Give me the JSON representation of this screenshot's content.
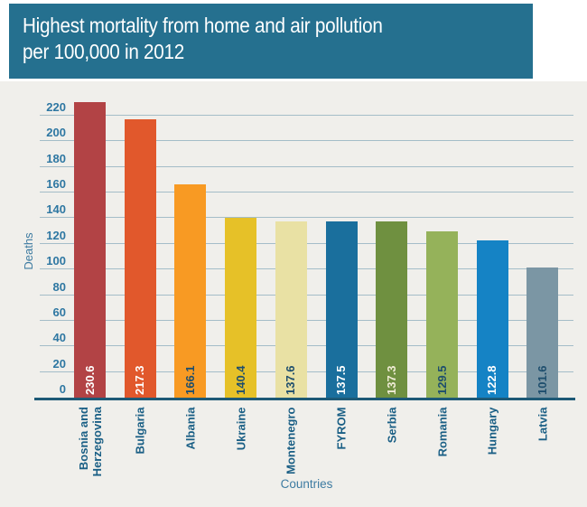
{
  "header": {
    "title_line1": "Highest mortality from home and air pollution",
    "title_line2": "per 100,000 in 2012"
  },
  "colors": {
    "header_bg": "#25708f",
    "panel_bg": "#f0efeb",
    "grid_line": "#a4bdc8",
    "axis_line": "#1d5976",
    "tick_label": "#2e77a2",
    "axis_title": "#3d7ba1",
    "category_label": "#1a5f85"
  },
  "chart_data": {
    "type": "bar",
    "title": "Highest mortality from home and air pollution per 100,000 in 2012",
    "xlabel": "Countries",
    "ylabel": "Deaths",
    "ylim": [
      0,
      220
    ],
    "ytick_step": 20,
    "grid": true,
    "legend": false,
    "categories": [
      "Bosnia and Herzegovina",
      "Bulgaria",
      "Albania",
      "Ukraine",
      "Montenegro",
      "FYROM",
      "Serbia",
      "Romania",
      "Hungary",
      "Latvia"
    ],
    "values": [
      230.6,
      217.3,
      166.1,
      140.4,
      137.6,
      137.5,
      137.3,
      129.5,
      122.8,
      101.6
    ],
    "bar_colors": [
      "#b24345",
      "#e1582c",
      "#f89a23",
      "#e6c128",
      "#e9e1a4",
      "#1a6f9d",
      "#6f9040",
      "#95b25a",
      "#1583c5",
      "#7b96a4"
    ],
    "value_label_colors": [
      "#ffffff",
      "#ffffff",
      "#1e4e6d",
      "#1e4e6d",
      "#1e4e6d",
      "#ffffff",
      "#f0ecd6",
      "#1e4e6d",
      "#ffffff",
      "#1e4e6d"
    ]
  }
}
